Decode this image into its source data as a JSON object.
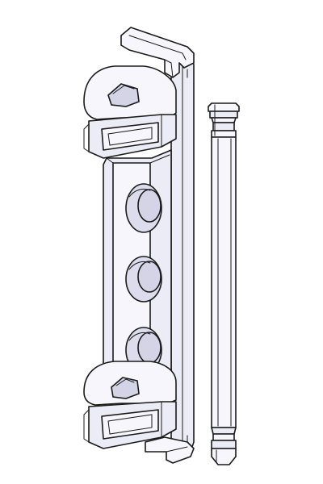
{
  "colors": {
    "background": "#ffffff",
    "outline": "#1a1a1a",
    "body_fill": "#ececf6",
    "highlight_fill": "#f6f6fc",
    "shade_fill": "#dcdcec"
  },
  "parts": [
    {
      "id": "hinge-bracket",
      "kind": "technical line drawing"
    },
    {
      "id": "hinge-pin",
      "kind": "technical line drawing"
    }
  ]
}
